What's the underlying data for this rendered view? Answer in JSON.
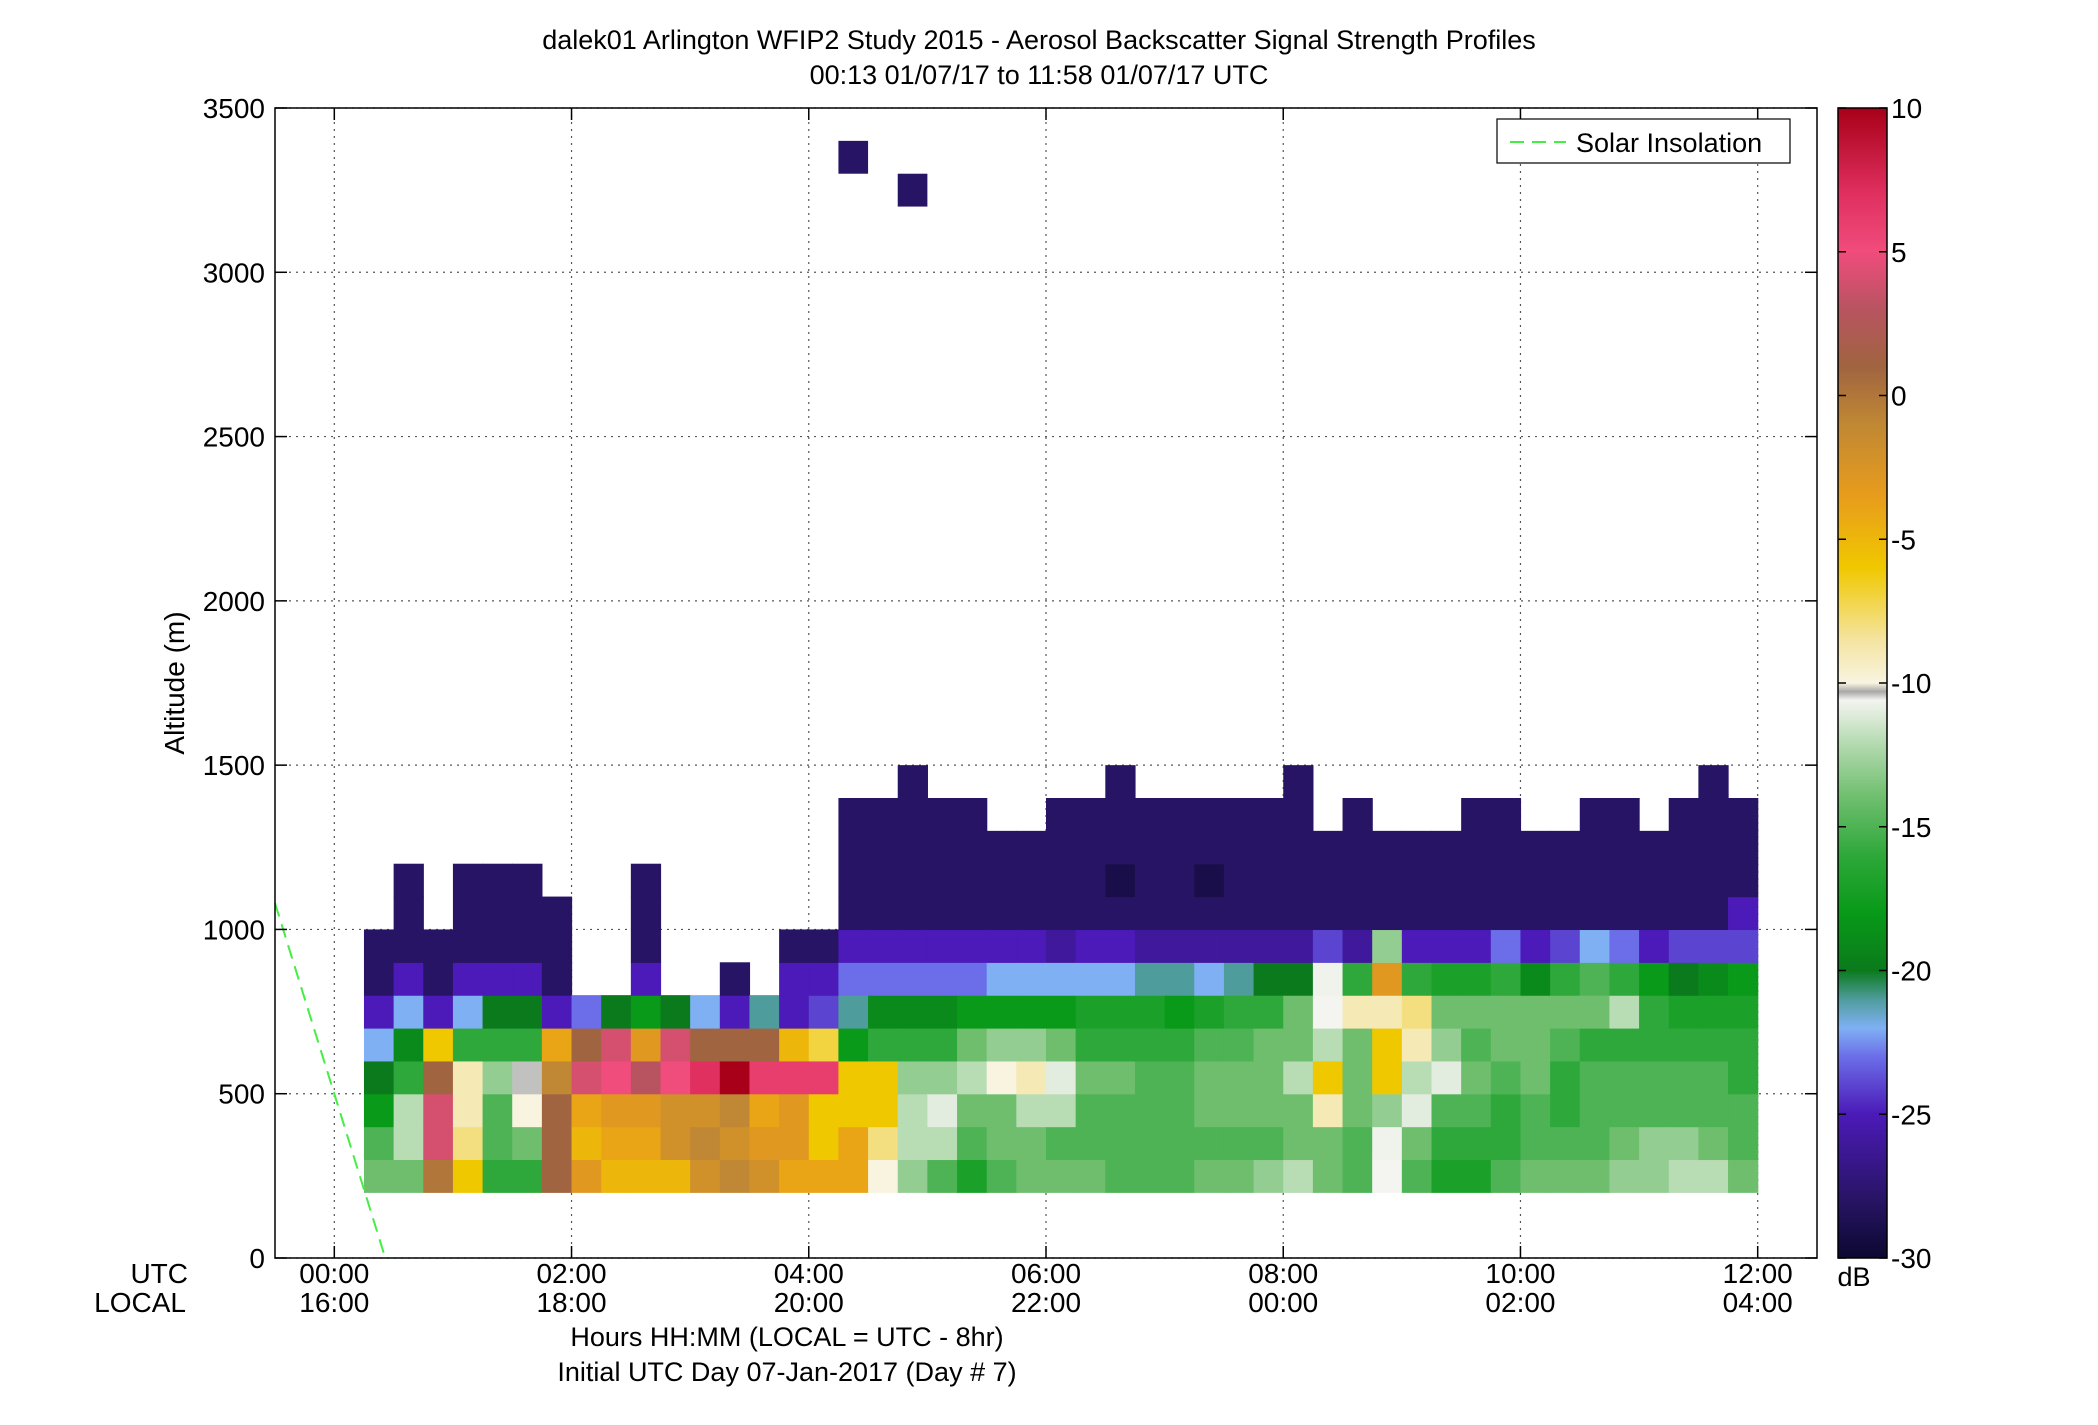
{
  "chart_data": {
    "type": "heatmap",
    "title": "dalek01 Arlington WFIP2 Study 2015 - Aerosol Backscatter Signal Strength Profiles",
    "subtitle": "00:13 01/07/17 to 11:58 01/07/17  UTC",
    "ylabel": "Altitude (m)",
    "xlabel": "Hours HH:MM  (LOCAL = UTC - 8hr)",
    "xlabel2": "Initial UTC Day 07-Jan-2017 (Day # 7)",
    "xlim": [
      -0.5,
      12.5
    ],
    "ylim": [
      0,
      3500
    ],
    "grid": true,
    "y_ticks": [
      0,
      500,
      1000,
      1500,
      2000,
      2500,
      3000,
      3500
    ],
    "x_ticks": [
      0,
      2,
      4,
      6,
      8,
      10,
      12
    ],
    "x_row_labels": [
      "UTC",
      "LOCAL"
    ],
    "x_tick_labels_utc": [
      "00:00",
      "02:00",
      "04:00",
      "06:00",
      "08:00",
      "10:00",
      "12:00"
    ],
    "x_tick_labels_local": [
      "16:00",
      "18:00",
      "20:00",
      "22:00",
      "00:00",
      "02:00",
      "04:00"
    ],
    "legend": {
      "position": "top-right",
      "entries": [
        {
          "name": "Solar Insolation",
          "style": "dashed",
          "color": "#44ee44"
        }
      ]
    },
    "colorbar": {
      "label": "dB",
      "range": [
        -30,
        10
      ],
      "ticks": [
        -30,
        -25,
        -20,
        -15,
        -10,
        -5,
        0,
        5,
        10
      ],
      "colormap": [
        [
          -30,
          "#0b0830"
        ],
        [
          -28,
          "#281464"
        ],
        [
          -25,
          "#4b1ab8"
        ],
        [
          -23,
          "#6b6ee8"
        ],
        [
          -22,
          "#7fb0f4"
        ],
        [
          -21,
          "#4f9c9c"
        ],
        [
          -20,
          "#0b7a1c"
        ],
        [
          -18,
          "#089a18"
        ],
        [
          -16,
          "#2ea83a"
        ],
        [
          -14,
          "#6ebe6e"
        ],
        [
          -12,
          "#b8dcb4"
        ],
        [
          -10.6,
          "#f4f4f0"
        ],
        [
          -10.3,
          "#a8a8a8"
        ],
        [
          -10,
          "#f8f4e0"
        ],
        [
          -8.5,
          "#f4e4a0"
        ],
        [
          -6,
          "#f0c800"
        ],
        [
          -3.5,
          "#e89c1c"
        ],
        [
          -1,
          "#c08834"
        ],
        [
          1,
          "#a06440"
        ],
        [
          3,
          "#b85460"
        ],
        [
          5,
          "#f04c7c"
        ],
        [
          7,
          "#e03060"
        ],
        [
          10,
          "#a80018"
        ]
      ]
    },
    "solar_insolation": {
      "x": [
        -0.5,
        0.43
      ],
      "y": [
        1080,
        0
      ]
    },
    "bin_width_hours": 0.25,
    "bin_height_m": 100,
    "start_hour": 0.25,
    "start_altitude_m": 200,
    "columns": [
      {
        "x": 0.25,
        "bottom": 200,
        "dB": [
          -14,
          -15,
          -18,
          -20,
          -22,
          -25,
          -28,
          -28
        ]
      },
      {
        "x": 0.5,
        "bottom": 200,
        "dB": [
          -14,
          -12,
          -12,
          -16,
          -19,
          -22,
          -25,
          -28,
          -28,
          -28
        ]
      },
      {
        "x": 0.75,
        "bottom": 200,
        "dB": [
          0,
          4,
          4,
          1,
          -6,
          -25,
          -28,
          -28
        ]
      },
      {
        "x": 1.0,
        "bottom": 200,
        "dB": [
          -6,
          -8,
          -9,
          -9,
          -16,
          -22,
          -25,
          -28,
          -28,
          -28
        ]
      },
      {
        "x": 1.25,
        "bottom": 200,
        "dB": [
          -16,
          -15,
          -15,
          -13,
          -16,
          -20,
          -25,
          -28,
          -28,
          -28
        ]
      },
      {
        "x": 1.5,
        "bottom": 200,
        "dB": [
          -16,
          -14,
          -10,
          -10.4,
          -16,
          -20,
          -25,
          -28,
          -28,
          -28
        ]
      },
      {
        "x": 1.75,
        "bottom": 200,
        "dB": [
          1,
          1,
          1,
          -1,
          -4,
          -25,
          -28,
          -28,
          -28
        ]
      },
      {
        "x": 2.0,
        "bottom": 200,
        "dB": [
          -3,
          -5,
          -4,
          4,
          1,
          -23
        ],
        "top": [
          0
        ]
      },
      {
        "x": 2.25,
        "bottom": 200,
        "dB": [
          -5,
          -4,
          -3,
          5,
          4,
          -20
        ]
      },
      {
        "x": 2.5,
        "bottom": 200,
        "dB": [
          -5,
          -4,
          -3,
          3,
          -3,
          -18,
          -25,
          -28,
          -28,
          -28
        ]
      },
      {
        "x": 2.75,
        "bottom": 200,
        "dB": [
          -5,
          -2,
          -2,
          5,
          4,
          -20
        ]
      },
      {
        "x": 3.0,
        "bottom": 200,
        "dB": [
          -2,
          -1,
          -2,
          7,
          1,
          -22
        ]
      },
      {
        "x": 3.25,
        "bottom": 200,
        "dB": [
          -1,
          -2,
          -1,
          10,
          1,
          -25,
          -28
        ]
      },
      {
        "x": 3.5,
        "bottom": 200,
        "dB": [
          -2,
          -3,
          -4,
          6,
          1,
          -21
        ]
      },
      {
        "x": 3.75,
        "bottom": 200,
        "dB": [
          -4,
          -3,
          -3,
          6,
          -5,
          -25,
          -25,
          -28
        ]
      },
      {
        "x": 4.0,
        "bottom": 200,
        "dB": [
          -4,
          -6,
          -6,
          6,
          -7,
          -24,
          -25,
          -28
        ]
      },
      {
        "x": 4.25,
        "bottom": 200,
        "dB": [
          -4,
          -4,
          -6,
          -6,
          -18,
          -21,
          -23,
          -25,
          -28,
          -28,
          -28,
          -28
        ]
      },
      {
        "x": 4.5,
        "bottom": 200,
        "dB": [
          -10,
          -8,
          -6,
          -6,
          -16,
          -19,
          -23,
          -25,
          -28,
          -28,
          -28,
          -28
        ]
      },
      {
        "x": 4.75,
        "bottom": 200,
        "dB": [
          -13,
          -12,
          -12,
          -13,
          -16,
          -19,
          -23,
          -25,
          -28,
          -28,
          -28,
          -28,
          -28
        ]
      },
      {
        "x": 5.0,
        "bottom": 200,
        "dB": [
          -15,
          -12,
          -11,
          -13,
          -16,
          -19,
          -23,
          -25,
          -28,
          -28,
          -28,
          -28
        ]
      },
      {
        "x": 5.25,
        "bottom": 200,
        "dB": [
          -17,
          -15,
          -14,
          -12,
          -14,
          -18,
          -23,
          -25,
          -28,
          -28,
          -28,
          -28
        ]
      },
      {
        "x": 5.5,
        "bottom": 200,
        "dB": [
          -15,
          -14,
          -14,
          -10,
          -13,
          -18,
          -22,
          -25,
          -28,
          -28,
          -28
        ]
      },
      {
        "x": 5.75,
        "bottom": 200,
        "dB": [
          -14,
          -14,
          -12,
          -9,
          -13,
          -18,
          -22,
          -25,
          -28,
          -28,
          -28
        ]
      },
      {
        "x": 6.0,
        "bottom": 200,
        "dB": [
          -14,
          -15,
          -12,
          -11,
          -14,
          -18,
          -22,
          -26,
          -28,
          -28,
          -28,
          -28
        ]
      },
      {
        "x": 6.25,
        "bottom": 200,
        "dB": [
          -14,
          -15,
          -15,
          -14,
          -16,
          -17,
          -22,
          -25,
          -28,
          -28,
          -28,
          -28
        ]
      },
      {
        "x": 6.5,
        "bottom": 200,
        "dB": [
          -15,
          -15,
          -15,
          -14,
          -16,
          -17,
          -22,
          -25,
          -28,
          -29,
          -28,
          -28,
          -28
        ]
      },
      {
        "x": 6.75,
        "bottom": 200,
        "dB": [
          -15,
          -15,
          -15,
          -15,
          -16,
          -17,
          -21,
          -26,
          -28,
          -28,
          -28,
          -28
        ]
      },
      {
        "x": 7.0,
        "bottom": 200,
        "dB": [
          -15,
          -15,
          -15,
          -15,
          -16,
          -18,
          -21,
          -26,
          -28,
          -28,
          -28,
          -28
        ]
      },
      {
        "x": 7.25,
        "bottom": 200,
        "dB": [
          -14,
          -15,
          -14,
          -14,
          -15,
          -17,
          -22,
          -26,
          -28,
          -29,
          -28,
          -28
        ]
      },
      {
        "x": 7.5,
        "bottom": 200,
        "dB": [
          -14,
          -15,
          -14,
          -14,
          -15,
          -16,
          -21,
          -26,
          -28,
          -28,
          -28,
          -28
        ]
      },
      {
        "x": 7.75,
        "bottom": 200,
        "dB": [
          -13,
          -15,
          -14,
          -14,
          -14,
          -16,
          -20,
          -26,
          -28,
          -28,
          -28,
          -28
        ]
      },
      {
        "x": 8.0,
        "bottom": 200,
        "dB": [
          -12,
          -14,
          -14,
          -12,
          -14,
          -14,
          -20,
          -26,
          -28,
          -28,
          -28,
          -28,
          -28
        ]
      },
      {
        "x": 8.25,
        "bottom": 200,
        "dB": [
          -14,
          -14,
          -9,
          -6,
          -12,
          -10.6,
          -10.7,
          -24,
          -28,
          -28,
          -28
        ]
      },
      {
        "x": 8.5,
        "bottom": 200,
        "dB": [
          -15,
          -15,
          -14,
          -14,
          -14,
          -9,
          -16,
          -26,
          -28,
          -28,
          -28,
          -28
        ]
      },
      {
        "x": 8.75,
        "bottom": 200,
        "dB": [
          -10.6,
          -10.7,
          -13,
          -6,
          -6,
          -9,
          -3,
          -13,
          -28,
          -28,
          -28
        ]
      },
      {
        "x": 9.0,
        "bottom": 200,
        "dB": [
          -15,
          -14,
          -11,
          -12,
          -9,
          -8,
          -16,
          -25,
          -28,
          -28,
          -28
        ]
      },
      {
        "x": 9.25,
        "bottom": 200,
        "dB": [
          -17,
          -16,
          -15,
          -11,
          -13,
          -14,
          -17,
          -25,
          -28,
          -28,
          -28
        ]
      },
      {
        "x": 9.5,
        "bottom": 200,
        "dB": [
          -17,
          -16,
          -15,
          -14,
          -15,
          -14,
          -17,
          -25,
          -28,
          -28,
          -28,
          -28
        ]
      },
      {
        "x": 9.75,
        "bottom": 200,
        "dB": [
          -15,
          -16,
          -16,
          -15,
          -14,
          -14,
          -16,
          -23,
          -28,
          -28,
          -28,
          -28
        ]
      },
      {
        "x": 10.0,
        "bottom": 200,
        "dB": [
          -14,
          -15,
          -15,
          -14,
          -14,
          -14,
          -19,
          -25,
          -28,
          -28,
          -28
        ]
      },
      {
        "x": 10.25,
        "bottom": 200,
        "dB": [
          -14,
          -15,
          -16,
          -16,
          -15,
          -14,
          -16,
          -24,
          -28,
          -28,
          -28
        ]
      },
      {
        "x": 10.5,
        "bottom": 200,
        "dB": [
          -14,
          -15,
          -15,
          -15,
          -16,
          -14,
          -15,
          -22,
          -28,
          -28,
          -28,
          -28
        ]
      },
      {
        "x": 10.75,
        "bottom": 200,
        "dB": [
          -13,
          -14,
          -15,
          -15,
          -16,
          -12,
          -16,
          -23,
          -28,
          -28,
          -28,
          -28
        ]
      },
      {
        "x": 11.0,
        "bottom": 200,
        "dB": [
          -13,
          -13,
          -15,
          -15,
          -16,
          -16,
          -18,
          -25,
          -28,
          -28,
          -28
        ]
      },
      {
        "x": 11.25,
        "bottom": 200,
        "dB": [
          -12,
          -13,
          -15,
          -15,
          -16,
          -17,
          -20,
          -24,
          -28,
          -28,
          -28,
          -28
        ]
      },
      {
        "x": 11.5,
        "bottom": 200,
        "dB": [
          -12,
          -14,
          -15,
          -15,
          -16,
          -17,
          -19,
          -24,
          -28,
          -28,
          -28,
          -28,
          -28
        ]
      },
      {
        "x": 11.75,
        "bottom": 200,
        "dB": [
          -14,
          -15,
          -15,
          -16,
          -16,
          -17,
          -18,
          -24,
          -25,
          -28,
          -28,
          -28
        ]
      }
    ],
    "isolated_cells": [
      {
        "x": 4.25,
        "y": 3300,
        "dB": -28
      },
      {
        "x": 4.75,
        "y": 3200,
        "dB": -28
      }
    ]
  }
}
